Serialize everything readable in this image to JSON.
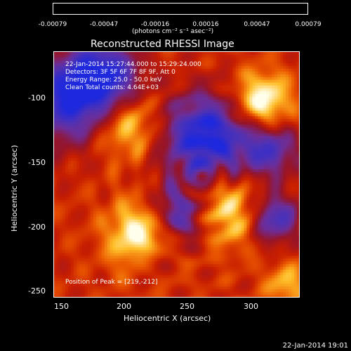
{
  "colorbar": {
    "ticks": [
      "-0.00079",
      "-0.00047",
      "-0.00016",
      "0.00016",
      "0.00047",
      "0.00079"
    ],
    "unit": "(photons cm⁻² s⁻¹ asec⁻²)"
  },
  "plot": {
    "title": "Reconstructed RHESSI Image",
    "info": {
      "time_range": "22-Jan-2014 15:27:44.000 to 15:29:24.000",
      "detectors": "Detectors: 3F 5F 6F 7F 8F 9F, Att 0",
      "energy": "Energy Range: 25.0 - 50.0 keV",
      "clean": "Clean    Total counts: 4.64E+03",
      "peak": "Position of Peak = [219,-212]"
    },
    "xlabel": "Heliocentric X (arcsec)",
    "ylabel": "Heliocentric Y (arcsec)",
    "xticks": [
      "150",
      "200",
      "250",
      "300"
    ],
    "yticks": [
      "-100",
      "-150",
      "-200",
      "-250"
    ]
  },
  "footer": "22-Jan-2014 19:01",
  "colors": {
    "background": "#000000",
    "frame": "#ffffff"
  },
  "chart_data": {
    "type": "heatmap",
    "title": "Reconstructed RHESSI Image",
    "xlabel": "Heliocentric X (arcsec)",
    "ylabel": "Heliocentric Y (arcsec)",
    "xlim": [
      145,
      340
    ],
    "ylim": [
      -258,
      -63
    ],
    "xticks": [
      150,
      200,
      250,
      300
    ],
    "yticks": [
      -100,
      -150,
      -200,
      -250
    ],
    "colorbar": {
      "label": "(photons cm⁻² s⁻¹ asec⁻²)",
      "range": [
        -0.00079,
        0.00079
      ],
      "ticks": [
        -0.00079,
        -0.00047,
        -0.00016,
        0.00016,
        0.00047,
        0.00079
      ],
      "colormap": "blue-purple-red-yellow-white"
    },
    "peak_position": [
      219,
      -212
    ],
    "energy_range_kev": [
      25.0,
      50.0
    ],
    "total_counts": 4640
  }
}
